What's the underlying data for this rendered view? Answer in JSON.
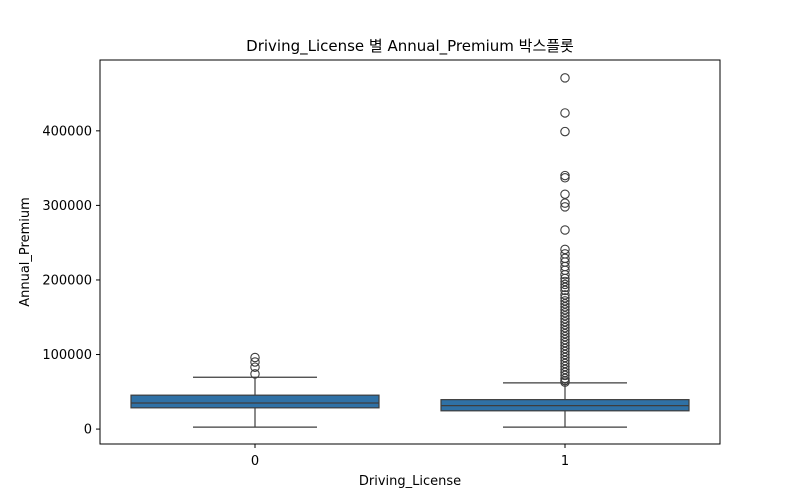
{
  "chart_data": {
    "type": "box",
    "title": "Driving_License 별 Annual_Premium 박스플롯",
    "xlabel": "Driving_License",
    "ylabel": "Annual_Premium",
    "categories": [
      "0",
      "1"
    ],
    "ylim": [
      -20000,
      495000
    ],
    "yticks": [
      0,
      100000,
      200000,
      300000,
      400000
    ],
    "ytick_labels": [
      "0",
      "100000",
      "200000",
      "300000",
      "400000"
    ],
    "grid": false,
    "box_color": "#2f71a6",
    "line_color": "#3d3d3d",
    "boxes": [
      {
        "category": "0",
        "whisker_low": 2630,
        "q1": 28500,
        "median": 35000,
        "q3": 45500,
        "whisker_high": 69500,
        "outliers": [
          74000,
          83000,
          90000,
          96000
        ]
      },
      {
        "category": "1",
        "whisker_low": 2630,
        "q1": 24500,
        "median": 31500,
        "q3": 39500,
        "whisker_high": 62000,
        "outliers": [
          471000,
          424000,
          399000,
          340000,
          337000,
          315000,
          303000,
          298000,
          267000,
          241000,
          235000,
          229000,
          224000,
          218000,
          213000,
          207000,
          202000,
          198000,
          194000,
          190000,
          186000,
          180000,
          176000,
          172000,
          168000,
          164000,
          160000,
          156000,
          152000,
          148000,
          144000,
          140000,
          136000,
          132000,
          128000,
          124000,
          120000,
          116000,
          112000,
          108000,
          104000,
          100000,
          96000,
          92000,
          88000,
          84000,
          80000,
          76000,
          72000,
          68000,
          65000,
          63000
        ]
      }
    ]
  }
}
